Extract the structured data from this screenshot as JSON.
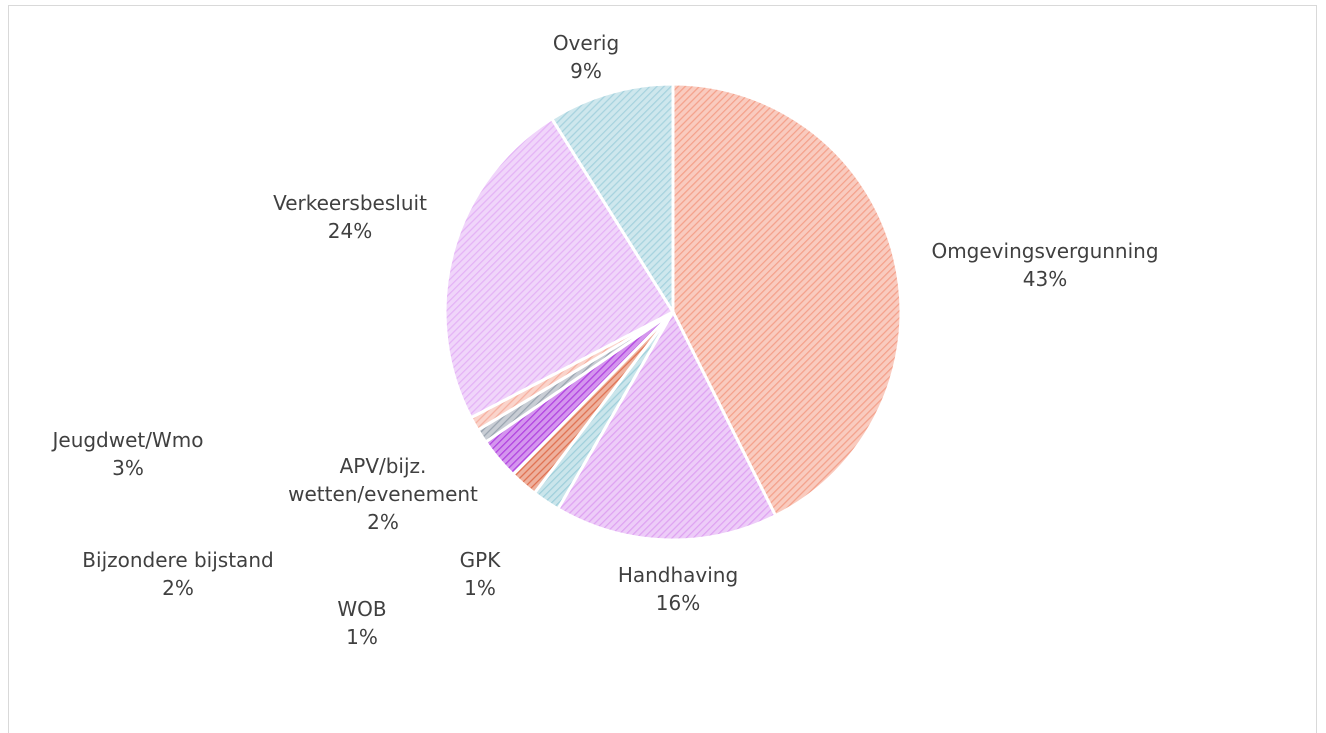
{
  "chart_data": {
    "type": "pie",
    "categories": [
      "Omgevingsvergunning",
      "Handhaving",
      "APV/bijz. wetten/evenement",
      "Bijzondere bijstand",
      "Jeugdwet/Wmo",
      "WOB",
      "GPK",
      "Verkeersbesluit",
      "Overig"
    ],
    "values": [
      43,
      16,
      2,
      2,
      3,
      1,
      1,
      24,
      9
    ],
    "value_labels": [
      "43%",
      "16%",
      "2%",
      "2%",
      "3%",
      "1%",
      "1%",
      "24%",
      "9%"
    ],
    "colors": [
      "#f4a08a",
      "#dea2f2",
      "#9fcfdb",
      "#e0704f",
      "#b040e0",
      "#9aa4b0",
      "#f6b0a0",
      "#e4b2f6",
      "#a6d2de"
    ]
  }
}
